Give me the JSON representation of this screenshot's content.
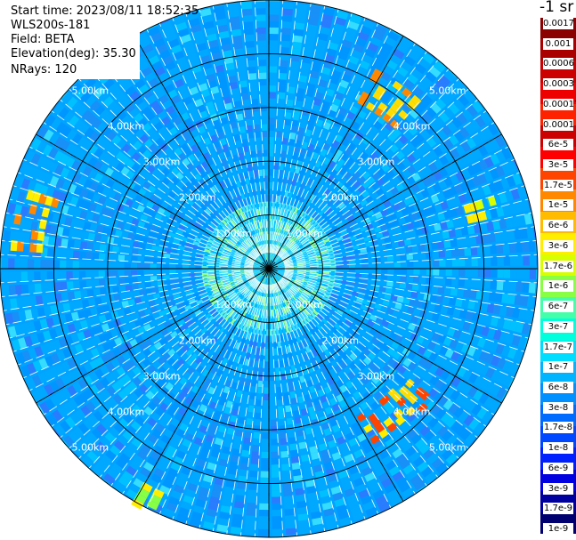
{
  "header": {
    "start_time": "Start time: 2023/08/11 18:52:35",
    "instrument": "WLS200s-181",
    "field": "Field: BETA",
    "elevation": "Elevation(deg): 35.30",
    "nrays": "NRays: 120"
  },
  "chart_data": {
    "type": "heatmap",
    "projection": "polar-ppi",
    "rays": 120,
    "range_unit": "km",
    "rmax_km": 5.0,
    "range_rings_km": [
      1.0,
      2.0,
      3.0,
      4.0,
      5.0
    ],
    "ring_labels": [
      "1.00km",
      "2.00km",
      "3.00km",
      "4.00km",
      "5.00km"
    ],
    "spoke_step_deg": 30,
    "colorbar": {
      "title": "-1 sr",
      "ticks": [
        "0.0017",
        "0.001",
        "0.0006",
        "0.0003",
        "0.00017",
        "0.0001",
        "6e-5",
        "3e-5",
        "1.7e-5",
        "1e-5",
        "6e-6",
        "3e-6",
        "1.7e-6",
        "1e-6",
        "6e-7",
        "3e-7",
        "1.7e-7",
        "1e-7",
        "6e-8",
        "3e-8",
        "1.7e-8",
        "1e-8",
        "6e-9",
        "3e-9",
        "1.7e-9",
        "1e-9"
      ],
      "colors": [
        "#cc0000",
        "#ff0000",
        "#ff4400",
        "#ff8800",
        "#ffbb00",
        "#ffee00",
        "#d8ff00",
        "#88ff44",
        "#44ffaa",
        "#00ffdd",
        "#00ddff",
        "#00b4ff",
        "#0090ff",
        "#006cff",
        "#0048ff",
        "#0020ff",
        "#0000e0",
        "#0000a0",
        "#000070"
      ],
      "colors_dark": [
        "#8b0000",
        "#aa0000",
        "#cc0000",
        "#ee0000",
        "#ff2200"
      ]
    },
    "field_colors": [
      "#00a8ff",
      "#0096ff",
      "#1890f8",
      "#00c0ff",
      "#2a7cff",
      "#36dcff",
      "#5ef0e0",
      "#90ff90"
    ],
    "highlights": [
      {
        "az_deg": [
          28,
          42
        ],
        "r_km": [
          3.5,
          4.2
        ],
        "colors": [
          "#ffdd00",
          "#ff8800"
        ]
      },
      {
        "az_deg": [
          72,
          80
        ],
        "r_km": [
          3.8,
          4.3
        ],
        "colors": [
          "#ffee00",
          "#d8ff00"
        ]
      },
      {
        "az_deg": [
          128,
          138
        ],
        "r_km": [
          3.2,
          3.9
        ],
        "colors": [
          "#ffdd00",
          "#ff4400"
        ]
      },
      {
        "az_deg": [
          138,
          150
        ],
        "r_km": [
          3.2,
          3.7
        ],
        "colors": [
          "#ff4400",
          "#ffee00"
        ]
      },
      {
        "az_deg": [
          274,
          288
        ],
        "r_km": [
          4.1,
          4.8
        ],
        "colors": [
          "#ffee00",
          "#ff8800"
        ]
      },
      {
        "az_deg": [
          202,
          210
        ],
        "r_km": [
          4.6,
          5.0
        ],
        "colors": [
          "#ffee00",
          "#88ff44"
        ]
      }
    ]
  }
}
